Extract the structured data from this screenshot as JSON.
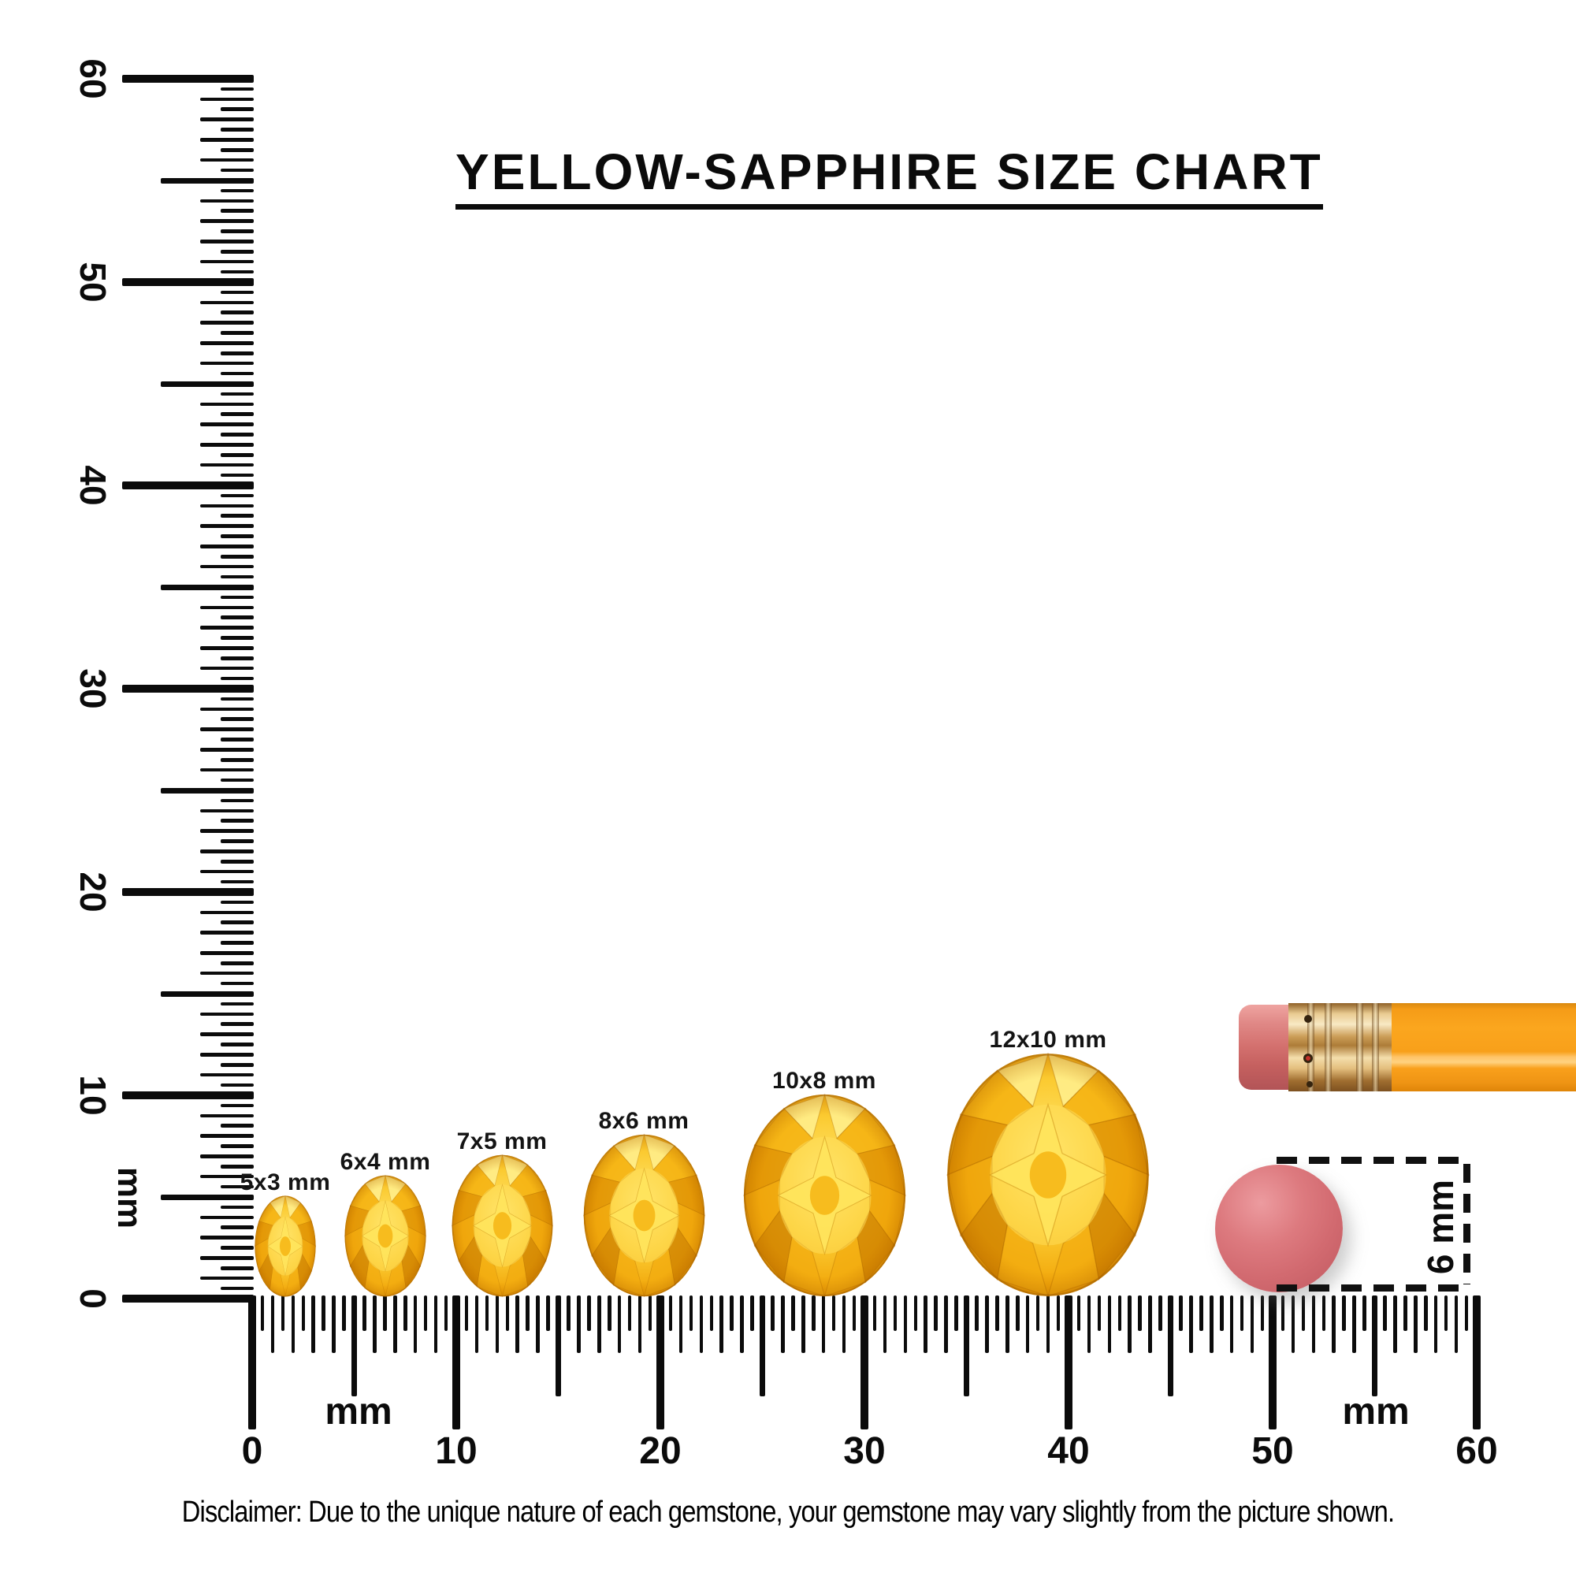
{
  "title": "YELLOW-SAPPHIRE SIZE CHART",
  "vertical_ruler": {
    "unit": "mm",
    "major_labels": [
      "0",
      "10",
      "20",
      "30",
      "40",
      "50",
      "60"
    ],
    "range_mm": 60,
    "tick_step_mm": 0.5
  },
  "horizontal_ruler": {
    "unit_left": "mm",
    "unit_right": "mm",
    "major_labels": [
      "0",
      "10",
      "20",
      "30",
      "40",
      "50",
      "60"
    ],
    "range_mm": 60,
    "tick_step_mm": 0.5
  },
  "gems": [
    {
      "label": "5x3 mm",
      "length_mm": 5,
      "width_mm": 3
    },
    {
      "label": "6x4 mm",
      "length_mm": 6,
      "width_mm": 4
    },
    {
      "label": "7x5 mm",
      "length_mm": 7,
      "width_mm": 5
    },
    {
      "label": "8x6 mm",
      "length_mm": 8,
      "width_mm": 6
    },
    {
      "label": "10x8 mm",
      "length_mm": 10,
      "width_mm": 8
    },
    {
      "label": "12x10 mm",
      "length_mm": 12,
      "width_mm": 10
    }
  ],
  "eraser_top_view": {
    "dimension_label": "6 mm",
    "diameter_mm": 6
  },
  "disclaimer": "Disclaimer: Due to the unique nature of each gemstone, your gemstone may vary slightly from the picture shown.",
  "colors": {
    "ink": "#0b0b0b",
    "gem_light": "#FFE875",
    "gem_gold": "#F5B313",
    "gem_dark": "#DE8C00",
    "pencil_body_orange": "#F9A11B",
    "ferrule_gold": "#D9A358",
    "eraser_pink": "#D76C70"
  }
}
